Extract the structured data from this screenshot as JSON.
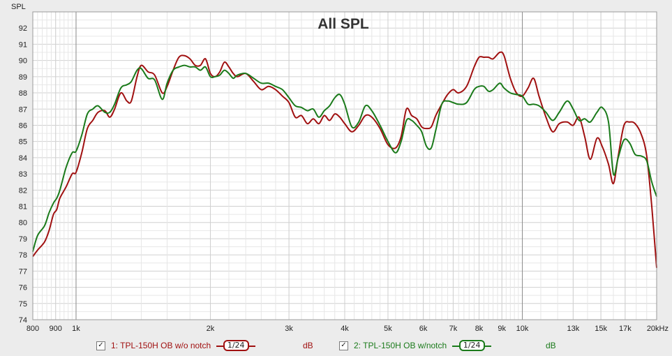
{
  "chart_data": {
    "type": "line",
    "title": "All SPL",
    "ylabel": "SPL",
    "xscale": "log",
    "xlim": [
      800,
      20000
    ],
    "ylim": [
      74,
      93
    ],
    "yticks": [
      74,
      75,
      76,
      77,
      78,
      79,
      80,
      81,
      82,
      83,
      84,
      85,
      86,
      87,
      88,
      89,
      90,
      91,
      92
    ],
    "xticks": [
      {
        "value": 800,
        "label": "800"
      },
      {
        "value": 900,
        "label": "900"
      },
      {
        "value": 1000,
        "label": "1k"
      },
      {
        "value": 2000,
        "label": "2k"
      },
      {
        "value": 3000,
        "label": "3k"
      },
      {
        "value": 4000,
        "label": "4k"
      },
      {
        "value": 5000,
        "label": "5k"
      },
      {
        "value": 6000,
        "label": "6k"
      },
      {
        "value": 7000,
        "label": "7k"
      },
      {
        "value": 8000,
        "label": "8k"
      },
      {
        "value": 9000,
        "label": "9k"
      },
      {
        "value": 10000,
        "label": "10k"
      },
      {
        "value": 13000,
        "label": "13k"
      },
      {
        "value": 15000,
        "label": "15k"
      },
      {
        "value": 17000,
        "label": "17k"
      },
      {
        "value": 20000,
        "label": "20kHz"
      }
    ],
    "grid": true,
    "series": [
      {
        "name": "TPL-150H OB w/o notch",
        "color": "#a01010",
        "points": [
          [
            800,
            77.9
          ],
          [
            820,
            78.3
          ],
          [
            850,
            78.8
          ],
          [
            870,
            79.5
          ],
          [
            890,
            80.5
          ],
          [
            905,
            80.8
          ],
          [
            920,
            81.5
          ],
          [
            950,
            82.2
          ],
          [
            980,
            83.0
          ],
          [
            1000,
            83.1
          ],
          [
            1030,
            84.3
          ],
          [
            1060,
            85.8
          ],
          [
            1090,
            86.3
          ],
          [
            1120,
            86.8
          ],
          [
            1160,
            86.9
          ],
          [
            1190,
            86.5
          ],
          [
            1220,
            87.0
          ],
          [
            1260,
            88.0
          ],
          [
            1300,
            87.5
          ],
          [
            1330,
            87.5
          ],
          [
            1370,
            89.0
          ],
          [
            1400,
            89.7
          ],
          [
            1450,
            89.3
          ],
          [
            1500,
            89.1
          ],
          [
            1560,
            88.0
          ],
          [
            1600,
            88.4
          ],
          [
            1650,
            89.4
          ],
          [
            1700,
            90.2
          ],
          [
            1750,
            90.3
          ],
          [
            1800,
            90.1
          ],
          [
            1850,
            89.7
          ],
          [
            1900,
            89.7
          ],
          [
            1950,
            90.1
          ],
          [
            2000,
            89.2
          ],
          [
            2050,
            89.0
          ],
          [
            2100,
            89.3
          ],
          [
            2150,
            89.9
          ],
          [
            2200,
            89.6
          ],
          [
            2250,
            89.2
          ],
          [
            2300,
            89.0
          ],
          [
            2400,
            89.2
          ],
          [
            2500,
            88.7
          ],
          [
            2600,
            88.2
          ],
          [
            2700,
            88.4
          ],
          [
            2800,
            88.2
          ],
          [
            2900,
            87.8
          ],
          [
            3000,
            87.4
          ],
          [
            3100,
            86.5
          ],
          [
            3200,
            86.6
          ],
          [
            3300,
            86.1
          ],
          [
            3400,
            86.4
          ],
          [
            3500,
            86.1
          ],
          [
            3600,
            86.6
          ],
          [
            3700,
            86.3
          ],
          [
            3800,
            86.7
          ],
          [
            3900,
            86.5
          ],
          [
            4000,
            86.1
          ],
          [
            4150,
            85.6
          ],
          [
            4300,
            86.0
          ],
          [
            4450,
            86.6
          ],
          [
            4600,
            86.5
          ],
          [
            4800,
            85.8
          ],
          [
            5000,
            84.8
          ],
          [
            5200,
            84.6
          ],
          [
            5350,
            85.3
          ],
          [
            5500,
            87.0
          ],
          [
            5650,
            86.6
          ],
          [
            5800,
            86.4
          ],
          [
            5950,
            85.9
          ],
          [
            6100,
            85.8
          ],
          [
            6250,
            85.9
          ],
          [
            6400,
            86.6
          ],
          [
            6600,
            87.3
          ],
          [
            6800,
            87.9
          ],
          [
            7000,
            88.2
          ],
          [
            7200,
            88.0
          ],
          [
            7500,
            88.4
          ],
          [
            7800,
            89.6
          ],
          [
            8000,
            90.2
          ],
          [
            8200,
            90.2
          ],
          [
            8400,
            90.2
          ],
          [
            8600,
            90.1
          ],
          [
            8900,
            90.5
          ],
          [
            9100,
            90.3
          ],
          [
            9400,
            88.9
          ],
          [
            9700,
            88.0
          ],
          [
            10000,
            87.8
          ],
          [
            10300,
            88.3
          ],
          [
            10600,
            88.9
          ],
          [
            10900,
            87.8
          ],
          [
            11300,
            86.5
          ],
          [
            11700,
            85.6
          ],
          [
            12100,
            86.1
          ],
          [
            12600,
            86.2
          ],
          [
            13000,
            86.0
          ],
          [
            13400,
            86.5
          ],
          [
            13800,
            85.3
          ],
          [
            14200,
            83.9
          ],
          [
            14700,
            85.2
          ],
          [
            15100,
            84.7
          ],
          [
            15600,
            83.6
          ],
          [
            16000,
            82.4
          ],
          [
            16400,
            84.1
          ],
          [
            16900,
            86.0
          ],
          [
            17400,
            86.2
          ],
          [
            17900,
            86.1
          ],
          [
            18500,
            85.4
          ],
          [
            19000,
            84.1
          ],
          [
            19500,
            81.0
          ],
          [
            20000,
            77.2
          ]
        ]
      },
      {
        "name": "TPL-150H OB w/notch",
        "color": "#1a7a1a",
        "points": [
          [
            800,
            78.2
          ],
          [
            820,
            79.2
          ],
          [
            850,
            79.8
          ],
          [
            870,
            80.6
          ],
          [
            890,
            81.2
          ],
          [
            905,
            81.5
          ],
          [
            920,
            82.0
          ],
          [
            950,
            83.4
          ],
          [
            980,
            84.3
          ],
          [
            1000,
            84.4
          ],
          [
            1030,
            85.4
          ],
          [
            1060,
            86.7
          ],
          [
            1090,
            87.0
          ],
          [
            1120,
            87.2
          ],
          [
            1160,
            86.8
          ],
          [
            1190,
            86.8
          ],
          [
            1220,
            87.3
          ],
          [
            1260,
            88.3
          ],
          [
            1300,
            88.5
          ],
          [
            1330,
            88.7
          ],
          [
            1370,
            89.4
          ],
          [
            1400,
            89.5
          ],
          [
            1450,
            88.9
          ],
          [
            1500,
            88.8
          ],
          [
            1560,
            87.6
          ],
          [
            1600,
            88.6
          ],
          [
            1650,
            89.4
          ],
          [
            1700,
            89.6
          ],
          [
            1750,
            89.7
          ],
          [
            1800,
            89.6
          ],
          [
            1850,
            89.6
          ],
          [
            1900,
            89.4
          ],
          [
            1950,
            89.6
          ],
          [
            2000,
            89.0
          ],
          [
            2050,
            89.0
          ],
          [
            2100,
            89.1
          ],
          [
            2150,
            89.4
          ],
          [
            2200,
            89.2
          ],
          [
            2250,
            88.9
          ],
          [
            2300,
            89.1
          ],
          [
            2400,
            89.2
          ],
          [
            2500,
            88.9
          ],
          [
            2600,
            88.6
          ],
          [
            2700,
            88.6
          ],
          [
            2800,
            88.4
          ],
          [
            2900,
            88.2
          ],
          [
            3000,
            87.7
          ],
          [
            3100,
            87.2
          ],
          [
            3200,
            87.1
          ],
          [
            3300,
            86.9
          ],
          [
            3400,
            87.0
          ],
          [
            3500,
            86.5
          ],
          [
            3600,
            86.9
          ],
          [
            3700,
            87.2
          ],
          [
            3800,
            87.7
          ],
          [
            3900,
            87.9
          ],
          [
            4000,
            87.3
          ],
          [
            4150,
            85.9
          ],
          [
            4300,
            86.2
          ],
          [
            4450,
            87.2
          ],
          [
            4600,
            86.9
          ],
          [
            4800,
            86.0
          ],
          [
            5000,
            85.0
          ],
          [
            5200,
            84.3
          ],
          [
            5350,
            85.0
          ],
          [
            5500,
            86.3
          ],
          [
            5650,
            86.3
          ],
          [
            5800,
            86.0
          ],
          [
            5950,
            85.6
          ],
          [
            6100,
            84.7
          ],
          [
            6250,
            84.6
          ],
          [
            6400,
            85.7
          ],
          [
            6600,
            87.3
          ],
          [
            6800,
            87.5
          ],
          [
            7000,
            87.4
          ],
          [
            7200,
            87.3
          ],
          [
            7500,
            87.4
          ],
          [
            7800,
            88.2
          ],
          [
            8000,
            88.4
          ],
          [
            8200,
            88.4
          ],
          [
            8400,
            88.1
          ],
          [
            8600,
            88.2
          ],
          [
            8900,
            88.6
          ],
          [
            9100,
            88.3
          ],
          [
            9400,
            88.0
          ],
          [
            9700,
            87.9
          ],
          [
            10000,
            87.8
          ],
          [
            10300,
            87.3
          ],
          [
            10600,
            87.3
          ],
          [
            10900,
            87.2
          ],
          [
            11300,
            86.8
          ],
          [
            11700,
            86.3
          ],
          [
            12100,
            86.8
          ],
          [
            12600,
            87.5
          ],
          [
            13000,
            87.0
          ],
          [
            13400,
            86.3
          ],
          [
            13800,
            86.4
          ],
          [
            14200,
            86.2
          ],
          [
            14700,
            86.8
          ],
          [
            15100,
            87.1
          ],
          [
            15600,
            86.2
          ],
          [
            16000,
            83.0
          ],
          [
            16400,
            84.0
          ],
          [
            16900,
            85.1
          ],
          [
            17400,
            84.9
          ],
          [
            17900,
            84.2
          ],
          [
            18500,
            84.1
          ],
          [
            19000,
            83.8
          ],
          [
            19500,
            82.5
          ],
          [
            20000,
            81.6
          ]
        ]
      }
    ]
  },
  "legend": {
    "items": [
      {
        "check": "✓",
        "label": "1: TPL-150H OB w/o notch",
        "smoothing": "1/24",
        "unit": "dB",
        "color": "#a01010"
      },
      {
        "check": "✓",
        "label": "2: TPL-150H OB w/notch",
        "smoothing": "1/24",
        "unit": "dB",
        "color": "#1a7a1a"
      }
    ]
  }
}
